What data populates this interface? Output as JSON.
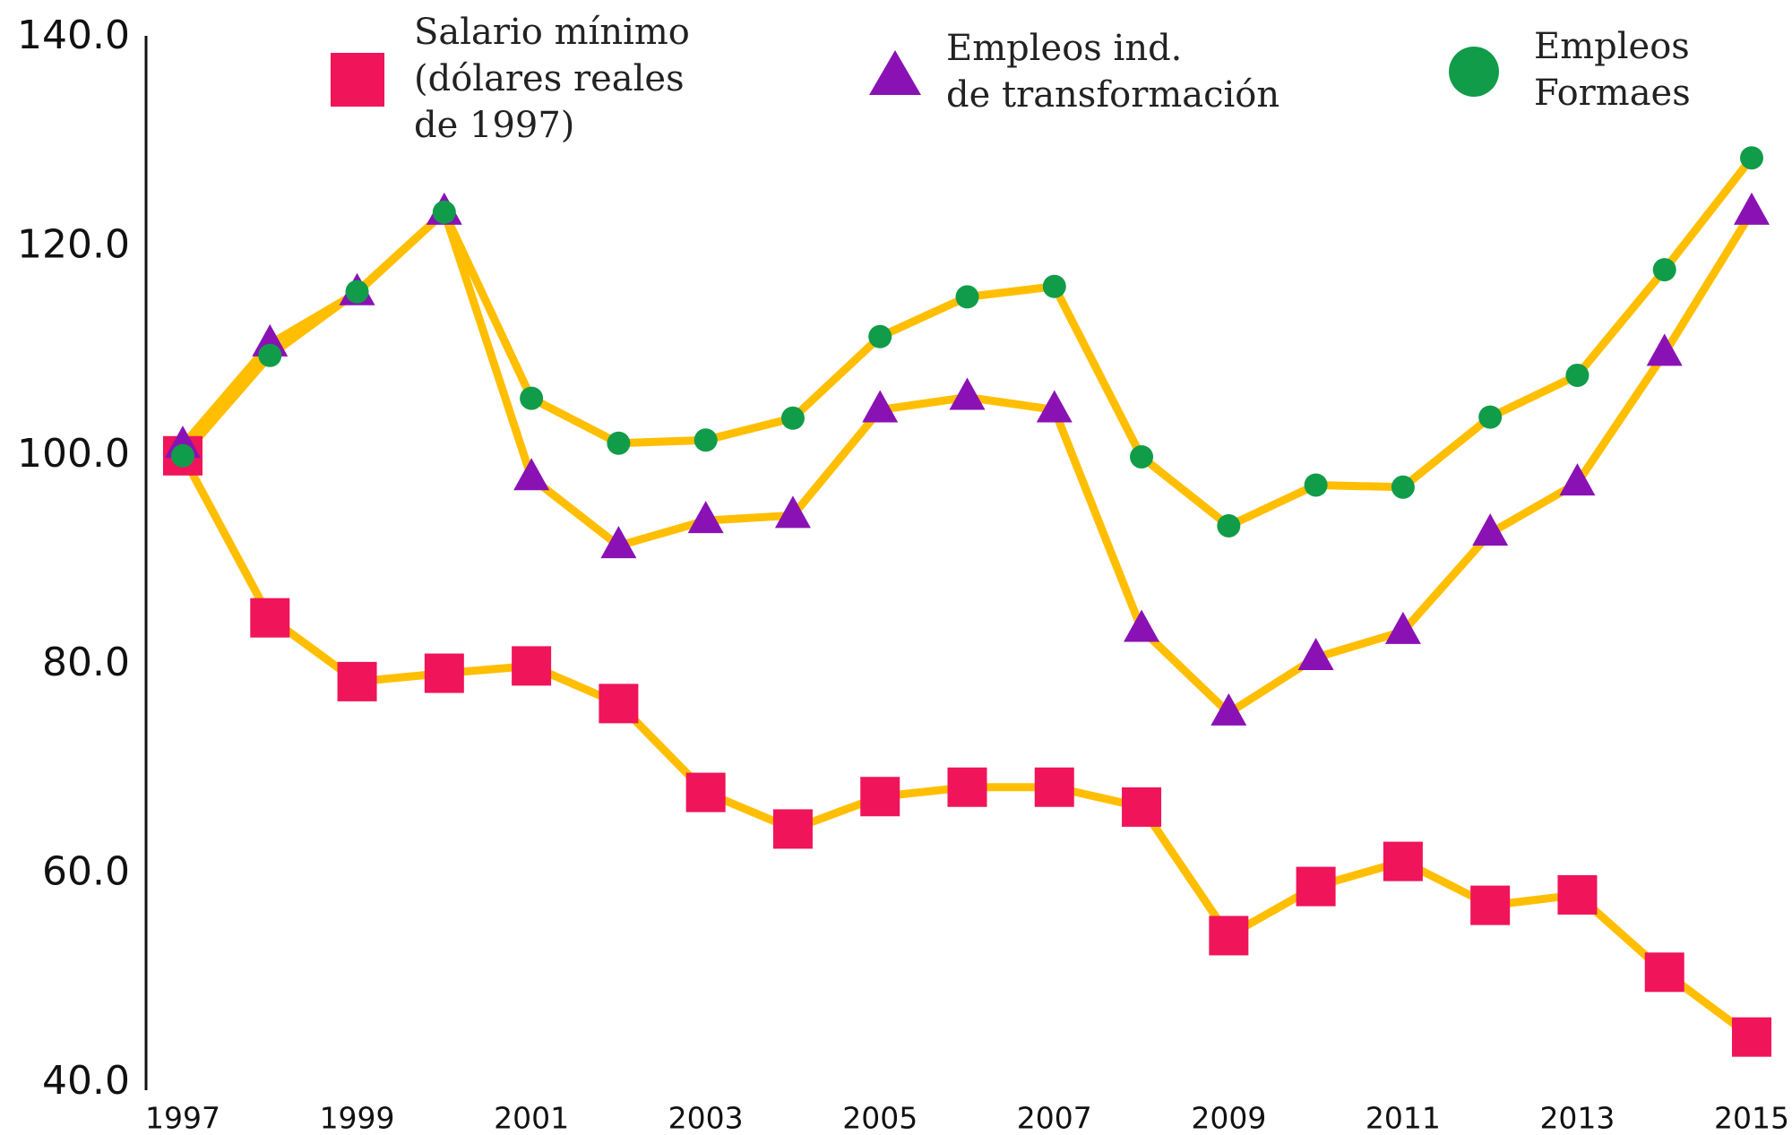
{
  "chart_data": {
    "type": "line",
    "x": [
      1997,
      1998,
      1999,
      2000,
      2001,
      2002,
      2003,
      2004,
      2005,
      2006,
      2007,
      2008,
      2009,
      2010,
      2011,
      2012,
      2013,
      2014,
      2015
    ],
    "xlim": [
      1997,
      2015
    ],
    "xticks": [
      1997,
      1999,
      2001,
      2003,
      2005,
      2007,
      2009,
      2011,
      2013,
      2015
    ],
    "ylim": [
      40,
      140
    ],
    "yticks": [
      {
        "value": 40,
        "label": "40.0"
      },
      {
        "value": 60,
        "label": "60.0"
      },
      {
        "value": 80,
        "label": "80.0"
      },
      {
        "value": 100,
        "label": "100.0"
      },
      {
        "value": 120,
        "label": "120.0"
      },
      {
        "value": 140,
        "label": "140.0"
      }
    ],
    "line_color": "#ffbf00",
    "series": [
      {
        "name": "Salario mínimo\n(dólares reales\nde 1997)",
        "color": "#f0145a",
        "marker": "square",
        "values": [
          100,
          84.5,
          78.4,
          79.2,
          79.9,
          76.3,
          67.8,
          64.3,
          67.4,
          68.3,
          68.3,
          66.4,
          54.1,
          58.8,
          61.2,
          57.0,
          58.0,
          50.6,
          44.4
        ]
      },
      {
        "name": "Empleos ind.\nde transformación",
        "color": "#8a12b5",
        "marker": "triangle",
        "values": [
          101,
          110.7,
          115.6,
          123.3,
          97.9,
          91.4,
          93.8,
          94.3,
          104.4,
          105.6,
          104.4,
          83.4,
          75.4,
          80.7,
          83.2,
          92.6,
          97.4,
          109.8,
          123.3
        ]
      },
      {
        "name": "Empleos\nFormaes",
        "color": "#119c4a",
        "marker": "circle",
        "values": [
          100,
          109.6,
          115.7,
          123.3,
          105.5,
          101.2,
          101.5,
          103.6,
          111.4,
          115.2,
          116.2,
          99.9,
          93.3,
          97.2,
          97.0,
          103.7,
          107.7,
          117.8,
          128.5
        ]
      }
    ]
  }
}
